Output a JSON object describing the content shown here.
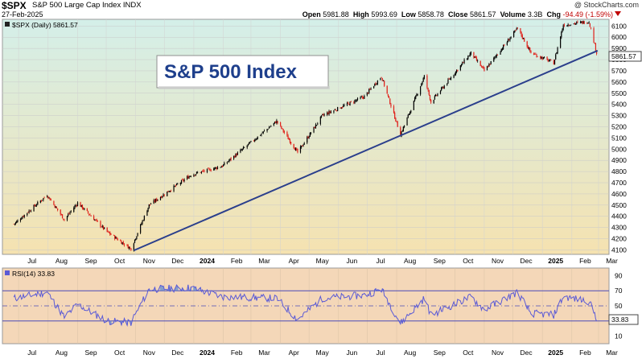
{
  "header": {
    "symbol": "$SPX",
    "name": "S&P 500 Large Cap Index  INDX",
    "date": "27-Feb-2025",
    "credit": "@ StockCharts.com",
    "open_label": "Open",
    "open": "5981.88",
    "high_label": "High",
    "high": "5993.69",
    "low_label": "Low",
    "low": "5858.78",
    "close_label": "Close",
    "close": "5861.57",
    "volume_label": "Volume",
    "volume": "3.3B",
    "chg_label": "Chg",
    "chg": "-94.49 (-1.59%)"
  },
  "main_panel": {
    "legend": "$SPX (Daily) 5861.57",
    "annotation": "S&P 500 Index",
    "last_price_tag": "5861.57"
  },
  "rsi_panel": {
    "legend": "RSI(14) 33.83",
    "last_value_tag": "33.83"
  },
  "colors": {
    "up": "#000000",
    "down": "#e0201a",
    "trendline": "#2b3f8c",
    "rsi_line": "#5a5ad6",
    "price_bg_top": "#d4efe9",
    "price_bg_bottom": "#f5e2b0",
    "rsi_bg": "#f4d7b8"
  },
  "chart_data": [
    {
      "type": "line",
      "title": "$SPX (Daily) 5861.57",
      "x_labels": [
        "Jul",
        "Aug",
        "Sep",
        "Oct",
        "Nov",
        "Dec",
        "2024",
        "Feb",
        "Mar",
        "Apr",
        "May",
        "Jun",
        "Jul",
        "Aug",
        "Sep",
        "Oct",
        "Nov",
        "Dec",
        "2025",
        "Feb",
        "Mar"
      ],
      "y_ticks": [
        4100,
        4200,
        4300,
        4400,
        4500,
        4600,
        4700,
        4800,
        4900,
        5000,
        5100,
        5200,
        5300,
        5400,
        5500,
        5600,
        5700,
        5800,
        5900,
        6000,
        6100
      ],
      "ylim": [
        4060,
        6160
      ],
      "x": [
        "2023-06-26",
        "2023-07-31",
        "2023-08-18",
        "2023-09-01",
        "2023-10-02",
        "2023-10-27",
        "2023-11-15",
        "2023-12-29",
        "2024-01-31",
        "2024-03-28",
        "2024-04-19",
        "2024-05-15",
        "2024-06-28",
        "2024-07-16",
        "2024-08-05",
        "2024-08-30",
        "2024-09-06",
        "2024-10-18",
        "2024-11-01",
        "2024-12-06",
        "2024-12-20",
        "2025-01-13",
        "2025-01-23",
        "2025-02-19",
        "2025-02-27"
      ],
      "values": [
        4330,
        4590,
        4370,
        4520,
        4260,
        4110,
        4500,
        4770,
        4850,
        5250,
        4970,
        5300,
        5470,
        5650,
        5130,
        5650,
        5420,
        5860,
        5700,
        6080,
        5860,
        5770,
        6110,
        6140,
        5861
      ],
      "trendline": {
        "x": [
          "2023-10-30",
          "2025-02-28"
        ],
        "y": [
          4095,
          5880
        ]
      }
    },
    {
      "type": "line",
      "title": "RSI(14) 33.83",
      "y_ticks": [
        10,
        30,
        50,
        70,
        90
      ],
      "ylim": [
        0,
        100
      ],
      "x": [
        "2023-06-26",
        "2023-07-31",
        "2023-08-18",
        "2023-09-01",
        "2023-10-02",
        "2023-10-27",
        "2023-11-15",
        "2023-12-29",
        "2024-01-31",
        "2024-03-28",
        "2024-04-19",
        "2024-05-15",
        "2024-06-28",
        "2024-07-16",
        "2024-08-05",
        "2024-08-30",
        "2024-09-06",
        "2024-10-18",
        "2024-11-01",
        "2024-12-06",
        "2024-12-20",
        "2025-01-13",
        "2025-01-23",
        "2025-02-19",
        "2025-02-27"
      ],
      "values": [
        60,
        68,
        35,
        52,
        30,
        28,
        72,
        74,
        62,
        60,
        32,
        60,
        64,
        72,
        27,
        60,
        38,
        62,
        45,
        68,
        40,
        38,
        62,
        56,
        33.83
      ]
    }
  ]
}
